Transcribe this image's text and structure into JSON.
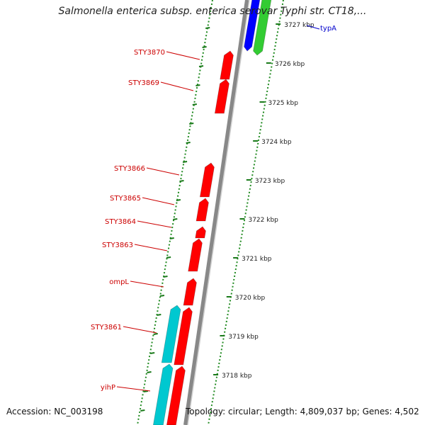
{
  "title": "Salmonella enterica subsp. enterica serovar Typhi str. CT18,...",
  "footer": {
    "accession_label": "Accession:",
    "accession": "NC_003198",
    "topology_label": "Topology:",
    "topology": "circular",
    "length_label": "Length:",
    "length": "4,809,037 bp",
    "genes_label": "Genes:",
    "genes": "4,502"
  },
  "colors": {
    "gene_minus": "#ff0000",
    "gene_minus_alt": "#00c8d0",
    "gene_plus_blue": "#0000ff",
    "gene_plus_green": "#33cc33",
    "gene_label_minus": "#cc0000",
    "gene_label_plus": "#0000cc",
    "ruler_dots": "#228b22",
    "backbone": "#888888"
  },
  "scale": {
    "unit": "kbp",
    "ticks": [
      "3727 kbp",
      "3726 kbp",
      "3725 kbp",
      "3724 kbp",
      "3723 kbp",
      "3722 kbp",
      "3721 kbp",
      "3720 kbp",
      "3719 kbp",
      "3718 kbp"
    ]
  },
  "genes": [
    {
      "name": "typA",
      "strand": "plus",
      "color_key": "gene_plus_blue"
    },
    {
      "name": "",
      "strand": "plus",
      "color_key": "gene_plus_green"
    },
    {
      "name": "STY3870",
      "strand": "minus",
      "color_key": "gene_minus"
    },
    {
      "name": "STY3869",
      "strand": "minus",
      "color_key": "gene_minus"
    },
    {
      "name": "STY3866",
      "strand": "minus",
      "color_key": "gene_minus"
    },
    {
      "name": "STY3865",
      "strand": "minus",
      "color_key": "gene_minus"
    },
    {
      "name": "STY3864",
      "strand": "minus",
      "color_key": "gene_minus"
    },
    {
      "name": "STY3863",
      "strand": "minus",
      "color_key": "gene_minus"
    },
    {
      "name": "ompL",
      "strand": "minus",
      "color_key": "gene_minus"
    },
    {
      "name": "STY3861",
      "strand": "minus",
      "color_key": "gene_minus"
    },
    {
      "name": "yihP",
      "strand": "minus",
      "color_key": "gene_minus"
    },
    {
      "name": "",
      "strand": "minus",
      "color_key": "gene_minus_alt"
    },
    {
      "name": "",
      "strand": "minus",
      "color_key": "gene_minus_alt"
    }
  ]
}
